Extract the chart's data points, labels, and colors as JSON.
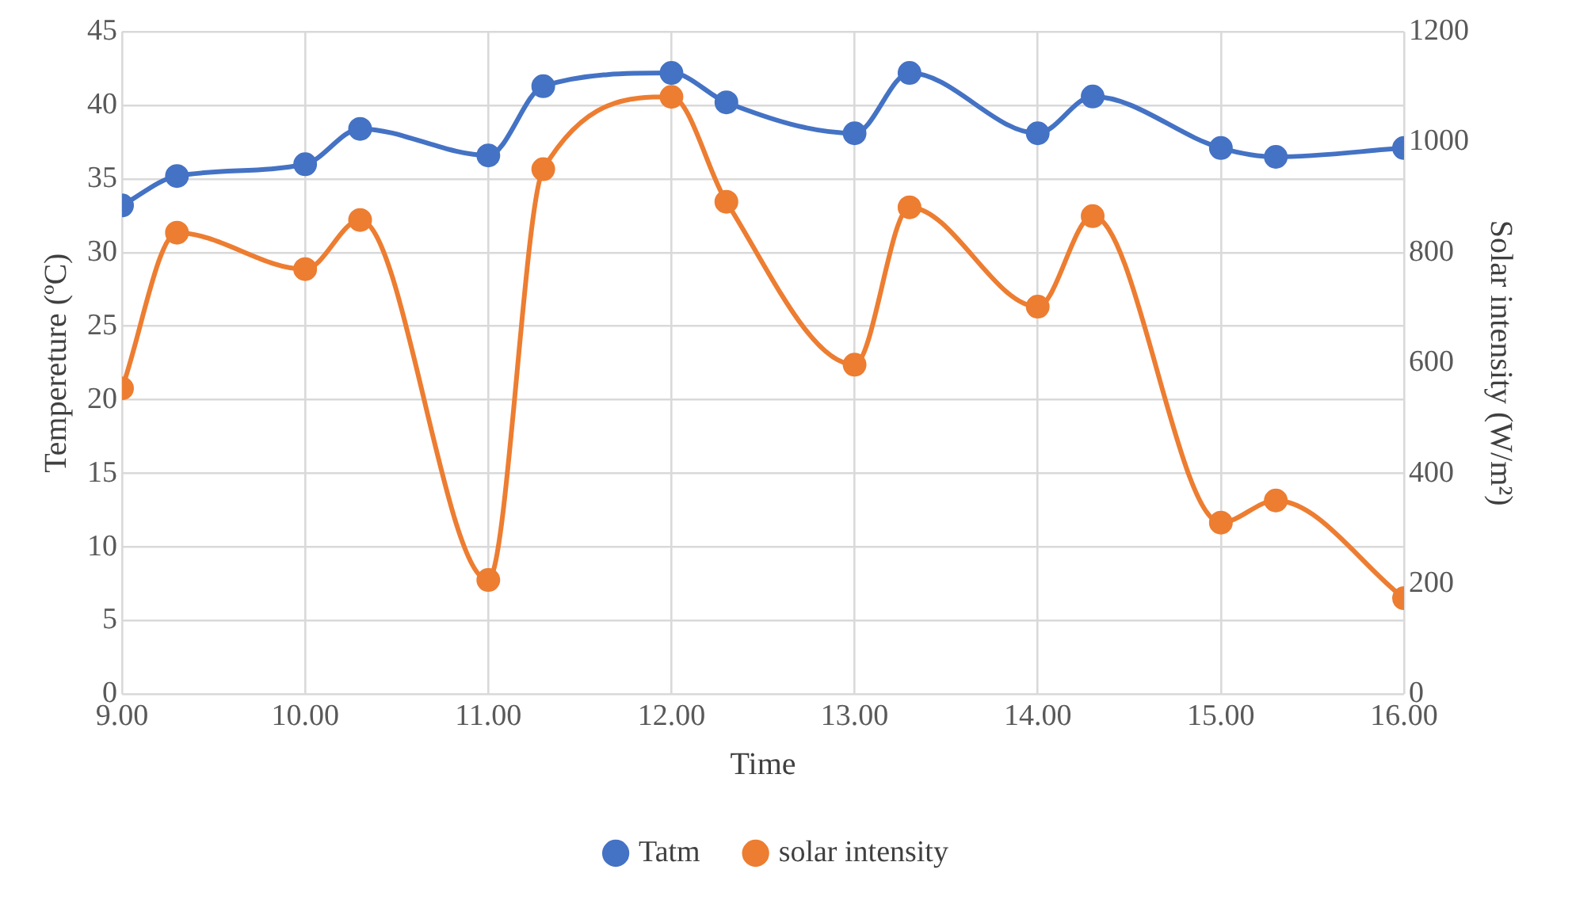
{
  "chart_data": {
    "type": "line",
    "xlabel": "Time",
    "ylabel": "Tempereture (ºC)",
    "y2label": "Solar intensity (W/m²)",
    "x": [
      9,
      9.3,
      10,
      10.3,
      11,
      11.3,
      12,
      12.3,
      13,
      13.3,
      14,
      14.3,
      15,
      15.3,
      16
    ],
    "series": [
      {
        "name": "Tatm",
        "color": "#4472c4",
        "values": [
          33.2,
          35.2,
          36.0,
          38.4,
          36.6,
          41.3,
          42.2,
          40.2,
          38.1,
          42.2,
          38.1,
          40.6,
          37.1,
          36.5,
          37.1
        ]
      },
      {
        "name": "solar intensity",
        "color": "#ed7d31",
        "axis": "y2",
        "values": [
          554,
          836,
          770,
          859,
          207,
          951,
          1082,
          892,
          597,
          882,
          702,
          866,
          311,
          351,
          174
        ]
      }
    ],
    "xlim": [
      9,
      16
    ],
    "xticks": [
      {
        "value": 9,
        "label": "9.00"
      },
      {
        "value": 10,
        "label": "10.00"
      },
      {
        "value": 11,
        "label": "11.00"
      },
      {
        "value": 12,
        "label": "12.00"
      },
      {
        "value": 13,
        "label": "13.00"
      },
      {
        "value": 14,
        "label": "14.00"
      },
      {
        "value": 15,
        "label": "15.00"
      },
      {
        "value": 16,
        "label": "16.00"
      }
    ],
    "ylim": [
      0,
      45
    ],
    "yticks": [
      0,
      5,
      10,
      15,
      20,
      25,
      30,
      35,
      40,
      45
    ],
    "y2lim": [
      0,
      1200
    ],
    "y2ticks": [
      0,
      200,
      400,
      600,
      800,
      1000,
      1200
    ],
    "grid": true,
    "legend": "bottom",
    "marker": "circle",
    "line_style": "solid"
  }
}
